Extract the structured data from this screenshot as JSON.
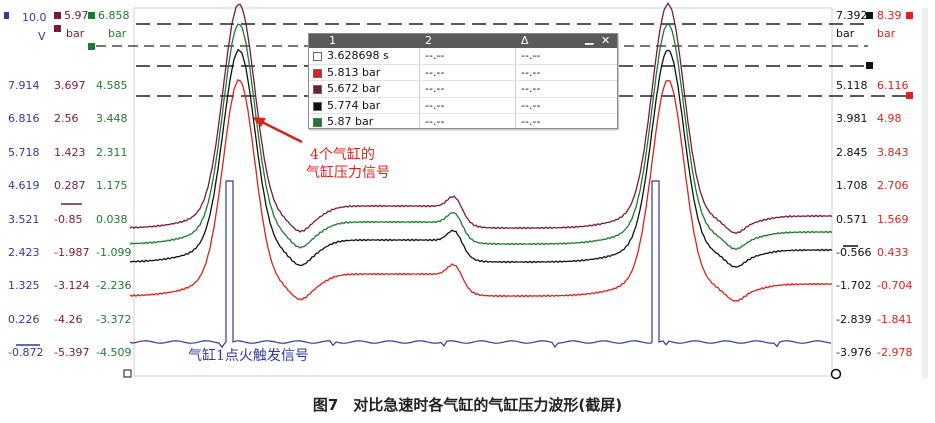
{
  "caption": "图7　对比急速时各气缸的气缸压力波形(截屏)",
  "annotations": {
    "cylinder_pressure": [
      "4个气缸的",
      "气缸压力信号"
    ],
    "ignition_trigger": "气缸1点火触发信号"
  },
  "left_axes": {
    "col_a": {
      "top_value": "10.0",
      "unit": "V",
      "color": "#2f3b9a",
      "ticks": [
        "7.914",
        "6.816",
        "5.718",
        "4.619",
        "3.521",
        "2.423",
        "1.325",
        "0.226",
        "-0.872"
      ]
    },
    "col_b": {
      "top_value": "5.97",
      "unit": "bar",
      "color": "#7a1a3a",
      "ticks": [
        "3.697",
        "2.56",
        "1.423",
        "0.287",
        "-0.85",
        "-1.987",
        "-3.124",
        "-4.26",
        "-5.397"
      ]
    },
    "col_c": {
      "top_value": "6.858",
      "unit": "bar",
      "color": "#1e7a2e",
      "ticks": [
        "4.585",
        "3.448",
        "2.311",
        "1.175",
        "0.038",
        "-1.099",
        "-2.236",
        "-3.372",
        "-4.509"
      ]
    }
  },
  "right_axes": {
    "col_a": {
      "top_value": "7.392",
      "unit": "bar",
      "color": "#111111",
      "ticks": [
        "5.118",
        "3.981",
        "2.845",
        "1.708",
        "0.571",
        "-0.566",
        "-1.702",
        "-2.839",
        "-3.976"
      ]
    },
    "col_b": {
      "top_value": "8.39",
      "unit": "bar",
      "color": "#d9231c",
      "ticks": [
        "6.116",
        "4.98",
        "3.843",
        "2.706",
        "1.569",
        "0.433",
        "-0.704",
        "-1.841",
        "-2.978"
      ]
    }
  },
  "cursor_panel": {
    "headers": [
      "1",
      "2",
      "Δ"
    ],
    "rows": [
      {
        "swatch": "#ffffff",
        "v1": "3.628698 s",
        "v2": "--.--",
        "d": "--.--"
      },
      {
        "swatch": "#d9231c",
        "v1": "5.813 bar",
        "v2": "--.--",
        "d": "--.--"
      },
      {
        "swatch": "#7a1a3a",
        "v1": "5.672 bar",
        "v2": "--.--",
        "d": "--.--"
      },
      {
        "swatch": "#111111",
        "v1": "5.774 bar",
        "v2": "--.--",
        "d": "--.--"
      },
      {
        "swatch": "#1e7a2e",
        "v1": "5.87 bar",
        "v2": "--.--",
        "d": "--.--"
      }
    ],
    "minimize_icon": "minimize-icon",
    "close_icon": "close-icon"
  },
  "trace_colors": {
    "maroon": "#7a1a3a",
    "green": "#1e7a2e",
    "black": "#111111",
    "red": "#d9231c",
    "blue": "#2f3b9a"
  }
}
